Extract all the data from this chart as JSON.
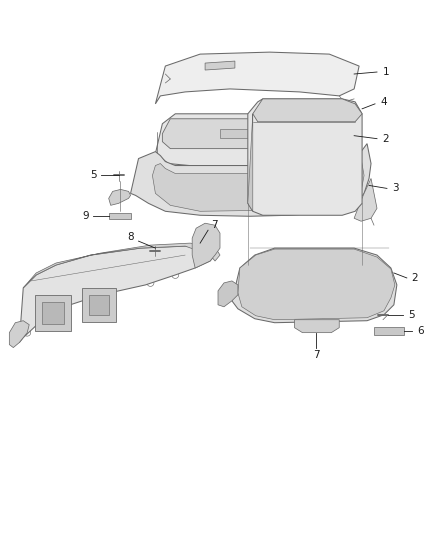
{
  "bg_color": "#ffffff",
  "line_color": "#6a6a6a",
  "text_color": "#1a1a1a",
  "fig_width": 4.38,
  "fig_height": 5.33,
  "dpi": 100,
  "label_fontsize": 7.5,
  "lw": 0.75
}
